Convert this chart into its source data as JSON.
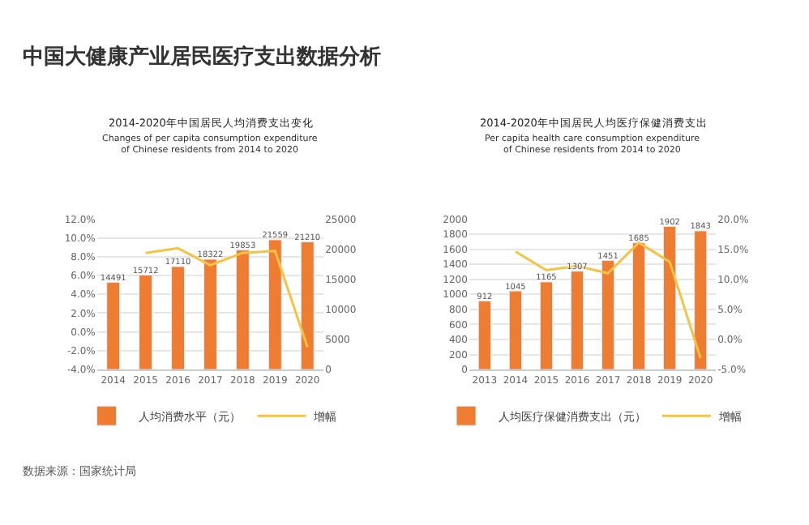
{
  "chart_data": [
    {
      "type": "bar",
      "title": "2014-2020年中国居民人均消费支出变化",
      "subtitle": "Changes of per capita consumption expenditure of Chinese residents from 2014 to 2020",
      "annotations": [
        "中国大健康产业居民医疗支出数据分析",
        "数据来源：国家统计局"
      ],
      "categories": [
        "2014",
        "2015",
        "2016",
        "2017",
        "2018",
        "2019",
        "2020"
      ],
      "series": [
        {
          "name": "人均消费水平（元）",
          "axis": "y2",
          "color": "#ee7d31",
          "values": [
            14491,
            15712,
            17110,
            18322,
            19853,
            21559,
            21210
          ],
          "value_labels": [
            "14491",
            "15712",
            "17110",
            "18322",
            "19853",
            "21559",
            "21210"
          ]
        },
        {
          "name": "增幅",
          "type": "line",
          "axis": "y",
          "color": "#f5c342",
          "values": [
            null,
            8.4,
            8.9,
            7.1,
            8.4,
            8.6,
            -1.6
          ]
        }
      ],
      "ylim": [
        -4,
        12
      ],
      "yticks": [
        {
          "value": -4,
          "label": "-4.0%"
        },
        {
          "value": -2,
          "label": "-2.0%"
        },
        {
          "value": 0,
          "label": "0.0%"
        },
        {
          "value": 2,
          "label": "2.0%"
        },
        {
          "value": 4,
          "label": "4.0%"
        },
        {
          "value": 6,
          "label": "6.0%"
        },
        {
          "value": 8,
          "label": "8.0%"
        },
        {
          "value": 10,
          "label": "10.0%"
        },
        {
          "value": 12,
          "label": "12.0%"
        }
      ],
      "y2lim": [
        0,
        25000
      ],
      "y2ticks": [
        0,
        5000,
        10000,
        15000,
        20000,
        25000
      ],
      "grid": "y",
      "legend": "bottom",
      "marker": "none"
    },
    {
      "type": "bar",
      "title": "2014-2020年中国居民人均医疗保健消费支出",
      "subtitle": "Per capita health care consumption expenditure of Chinese residents from 2014 to 2020",
      "categories": [
        "2013",
        "2014",
        "2015",
        "2016",
        "2017",
        "2018",
        "2019",
        "2020"
      ],
      "series": [
        {
          "name": "人均医疗保健消费支出（元）",
          "axis": "y",
          "color": "#ee7d31",
          "values": [
            912,
            1045,
            1165,
            1307,
            1451,
            1685,
            1902,
            1843
          ],
          "value_labels": [
            "912",
            "1045",
            "1165",
            "1307",
            "1451",
            "1685",
            "1902",
            "1843"
          ]
        },
        {
          "name": "增幅",
          "type": "line",
          "axis": "y2",
          "color": "#f5c342",
          "values": [
            null,
            14.6,
            11.5,
            12.2,
            11.0,
            16.1,
            12.9,
            -3.1
          ]
        }
      ],
      "ylim": [
        0,
        2000
      ],
      "yticks": [
        0,
        200,
        400,
        600,
        800,
        1000,
        1200,
        1400,
        1600,
        1800,
        2000
      ],
      "y2lim": [
        -5,
        20
      ],
      "y2ticks": [
        {
          "value": -5,
          "label": "-5.0%"
        },
        {
          "value": 0,
          "label": "0.0%"
        },
        {
          "value": 5,
          "label": "5.0%"
        },
        {
          "value": 10,
          "label": "10.0%"
        },
        {
          "value": 15,
          "label": "15.0%"
        },
        {
          "value": 20,
          "label": "20.0%"
        }
      ],
      "grid": "y",
      "legend": "bottom",
      "marker": "none"
    }
  ]
}
